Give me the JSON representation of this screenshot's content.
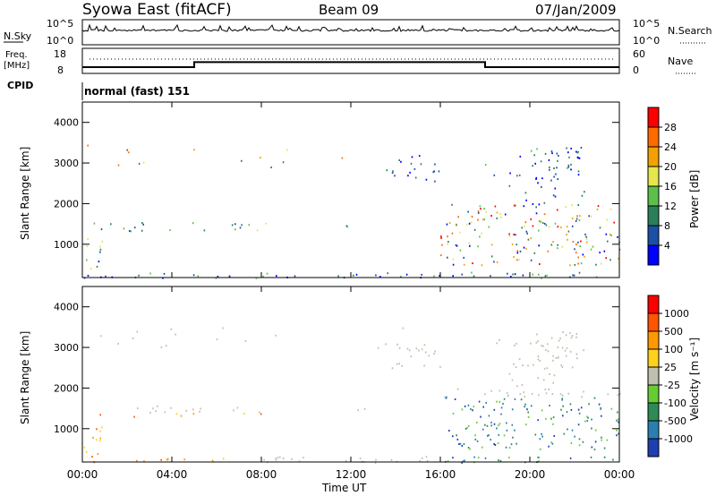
{
  "header": {
    "title": "Syowa East (fitACF)",
    "beam": "Beam 09",
    "date": "07/Jan/2009"
  },
  "noise_panel": {
    "left_label": "N.Sky",
    "right_label": "N.Search",
    "tick_top": "10^5",
    "tick_bottom": "10^0"
  },
  "freq_panel": {
    "left_label_1": "Freq.",
    "left_label_2": "[MHz]",
    "left_tick_top": "18",
    "left_tick_bottom": "8",
    "right_label": "Nave",
    "right_tick_top": "60",
    "right_tick_bottom": "0"
  },
  "cpid": {
    "label": "CPID",
    "value": "normal (fast) 151"
  },
  "chart_data": [
    {
      "type": "heatmap",
      "name": "power",
      "ylabel": "Slant Range [km]",
      "xlabel": "Time UT",
      "x_ticks": [
        "00:00",
        "04:00",
        "08:00",
        "12:00",
        "16:00",
        "20:00",
        "00:00"
      ],
      "y_ticks": [
        "1000",
        "2000",
        "3000",
        "4000"
      ],
      "xlim_hours": [
        0,
        24
      ],
      "ylim_km": [
        180,
        4500
      ],
      "colorbar": {
        "label": "Power [dB]",
        "ticks": [
          "4",
          "8",
          "12",
          "16",
          "20",
          "24",
          "28"
        ],
        "colors": [
          "#0000ff",
          "#1a4fa8",
          "#2a7f5a",
          "#5cbf4a",
          "#e6e64c",
          "#f2a200",
          "#ff6a00",
          "#ff0000"
        ]
      }
    },
    {
      "type": "heatmap",
      "name": "velocity",
      "ylabel": "Slant Range [km]",
      "xlabel": "Time UT",
      "x_ticks": [
        "00:00",
        "04:00",
        "08:00",
        "12:00",
        "16:00",
        "20:00",
        "00:00"
      ],
      "y_ticks": [
        "1000",
        "2000",
        "3000",
        "4000"
      ],
      "xlim_hours": [
        0,
        24
      ],
      "ylim_km": [
        180,
        4500
      ],
      "colorbar": {
        "label": "Velocity [m s⁻¹]",
        "ticks": [
          "1000",
          "500",
          "100",
          "25",
          "-25",
          "-100",
          "-500",
          "-1000"
        ],
        "colors": [
          "#1e3fb0",
          "#2a7fb0",
          "#2e8b57",
          "#66cc33",
          "#c0c0b0",
          "#ffd21a",
          "#ff9900",
          "#ff5500",
          "#ff0000"
        ]
      }
    }
  ],
  "x_axis": {
    "label": "Time UT",
    "ticks": [
      "00:00",
      "04:00",
      "08:00",
      "12:00",
      "16:00",
      "20:00",
      "00:00"
    ]
  }
}
